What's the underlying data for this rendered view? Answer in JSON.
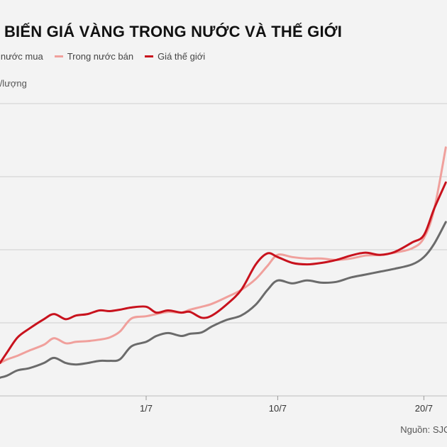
{
  "title": "Diễn biến giá vàng trong nước và thế giới",
  "title_display": "n BIẾN GIÁ VÀNG TRONG NƯỚC VÀ THẾ GIỚI",
  "unit_display": "ong/lượng",
  "source": "Nguồn: SJC,",
  "colors": {
    "domestic_buy": "#6b6b6b",
    "domestic_sell": "#f0a09c",
    "world": "#c8121d",
    "grid": "#cfcfcf"
  },
  "chart_data": {
    "type": "line",
    "title": "Diễn biến giá vàng trong nước và thế giới",
    "ylabel": "ong/lượng",
    "ylim": [
      0,
      4
    ],
    "x_range": [
      0,
      30
    ],
    "x_ticks": [
      {
        "x": 10,
        "label": "1/7"
      },
      {
        "x": 19,
        "label": "10/7"
      },
      {
        "x": 29,
        "label": "20/7"
      }
    ],
    "legend": [
      "g nước mua",
      "Trong nước bán",
      "Giá thế giới"
    ],
    "series": [
      {
        "name": "g nước mua",
        "color": "#6b6b6b",
        "points": [
          [
            0,
            0.25
          ],
          [
            0.5,
            0.28
          ],
          [
            1.2,
            0.35
          ],
          [
            2,
            0.38
          ],
          [
            3,
            0.45
          ],
          [
            3.7,
            0.52
          ],
          [
            4.5,
            0.45
          ],
          [
            5.2,
            0.43
          ],
          [
            6,
            0.45
          ],
          [
            6.8,
            0.48
          ],
          [
            7.5,
            0.48
          ],
          [
            8.2,
            0.5
          ],
          [
            9,
            0.68
          ],
          [
            10,
            0.74
          ],
          [
            10.7,
            0.82
          ],
          [
            11.5,
            0.86
          ],
          [
            12.4,
            0.82
          ],
          [
            13,
            0.85
          ],
          [
            13.8,
            0.87
          ],
          [
            14.5,
            0.95
          ],
          [
            15.5,
            1.04
          ],
          [
            16.5,
            1.1
          ],
          [
            17.5,
            1.25
          ],
          [
            18.3,
            1.45
          ],
          [
            19,
            1.58
          ],
          [
            20,
            1.54
          ],
          [
            21,
            1.58
          ],
          [
            22,
            1.55
          ],
          [
            23,
            1.56
          ],
          [
            24,
            1.62
          ],
          [
            25,
            1.66
          ],
          [
            26,
            1.7
          ],
          [
            27,
            1.74
          ],
          [
            28.2,
            1.8
          ],
          [
            29,
            1.9
          ],
          [
            29.7,
            2.08
          ],
          [
            30.5,
            2.38
          ]
        ]
      },
      {
        "name": "Trong nước bán",
        "color": "#f0a09c",
        "points": [
          [
            0,
            0.45
          ],
          [
            0.5,
            0.5
          ],
          [
            1.2,
            0.55
          ],
          [
            2,
            0.62
          ],
          [
            3,
            0.7
          ],
          [
            3.7,
            0.79
          ],
          [
            4.5,
            0.72
          ],
          [
            5.2,
            0.74
          ],
          [
            6,
            0.75
          ],
          [
            6.8,
            0.77
          ],
          [
            7.5,
            0.8
          ],
          [
            8.2,
            0.88
          ],
          [
            9,
            1.06
          ],
          [
            10,
            1.09
          ],
          [
            10.7,
            1.12
          ],
          [
            11.5,
            1.15
          ],
          [
            12.4,
            1.14
          ],
          [
            13,
            1.18
          ],
          [
            13.8,
            1.22
          ],
          [
            14.5,
            1.26
          ],
          [
            15.5,
            1.35
          ],
          [
            16.5,
            1.45
          ],
          [
            17.5,
            1.6
          ],
          [
            18.3,
            1.78
          ],
          [
            19,
            1.93
          ],
          [
            20,
            1.9
          ],
          [
            21,
            1.88
          ],
          [
            22,
            1.88
          ],
          [
            23,
            1.86
          ],
          [
            24,
            1.88
          ],
          [
            25,
            1.92
          ],
          [
            26,
            1.93
          ],
          [
            27,
            1.96
          ],
          [
            28.2,
            2.02
          ],
          [
            29,
            2.16
          ],
          [
            29.7,
            2.55
          ],
          [
            30.5,
            3.4
          ]
        ]
      },
      {
        "name": "Giá thế giới",
        "color": "#c8121d",
        "points": [
          [
            0,
            0.45
          ],
          [
            0.5,
            0.6
          ],
          [
            1.2,
            0.8
          ],
          [
            2,
            0.92
          ],
          [
            3,
            1.05
          ],
          [
            3.7,
            1.12
          ],
          [
            4.5,
            1.05
          ],
          [
            5.2,
            1.1
          ],
          [
            6,
            1.12
          ],
          [
            6.8,
            1.17
          ],
          [
            7.5,
            1.16
          ],
          [
            8.2,
            1.18
          ],
          [
            9,
            1.21
          ],
          [
            10,
            1.22
          ],
          [
            10.7,
            1.14
          ],
          [
            11.5,
            1.17
          ],
          [
            12.4,
            1.14
          ],
          [
            13,
            1.15
          ],
          [
            13.8,
            1.07
          ],
          [
            14.5,
            1.1
          ],
          [
            15.5,
            1.25
          ],
          [
            16.5,
            1.45
          ],
          [
            17.5,
            1.8
          ],
          [
            18.3,
            1.95
          ],
          [
            19,
            1.9
          ],
          [
            20,
            1.82
          ],
          [
            21,
            1.8
          ],
          [
            22,
            1.82
          ],
          [
            23,
            1.86
          ],
          [
            24,
            1.92
          ],
          [
            25,
            1.96
          ],
          [
            26,
            1.93
          ],
          [
            27,
            1.97
          ],
          [
            28.2,
            2.1
          ],
          [
            29,
            2.2
          ],
          [
            29.7,
            2.56
          ],
          [
            30.5,
            2.92
          ]
        ]
      }
    ]
  }
}
